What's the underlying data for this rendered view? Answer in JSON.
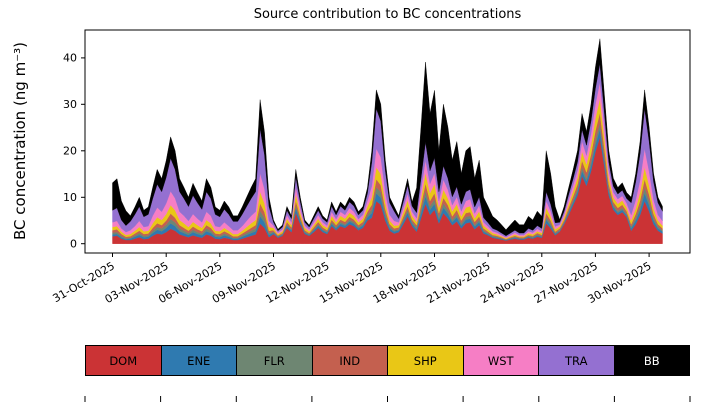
{
  "chart_data": {
    "type": "area",
    "stacked": true,
    "title": "Source contribution to BC concentrations",
    "xlabel": "",
    "ylabel": "BC concentration (ng m⁻³)",
    "ylim": [
      -2,
      46
    ],
    "yticks": [
      0,
      10,
      20,
      30,
      40
    ],
    "grid": false,
    "legend_position": "bottom",
    "x_tick_indices": [
      0,
      12,
      24,
      36,
      48,
      60,
      72,
      84,
      96,
      108,
      120
    ],
    "x_tick_labels": [
      "31-Oct-2025",
      "03-Nov-2025",
      "06-Nov-2025",
      "09-Nov-2025",
      "12-Nov-2025",
      "15-Nov-2025",
      "18-Nov-2025",
      "21-Nov-2025",
      "24-Nov-2025",
      "27-Nov-2025",
      "30-Nov-2025"
    ],
    "points_per_day": 4,
    "series": [
      {
        "name": "DOM",
        "color": "#cb3335",
        "label_color": "#000000",
        "values": [
          1.6,
          1.7,
          1.1,
          0.8,
          0.8,
          1.1,
          1.4,
          1.0,
          1.1,
          1.7,
          2.2,
          2.0,
          2.5,
          3.2,
          2.8,
          2.0,
          1.7,
          1.4,
          1.8,
          1.5,
          1.3,
          2.0,
          1.7,
          1.1,
          1.0,
          1.3,
          1.1,
          0.8,
          0.8,
          1.1,
          1.4,
          1.7,
          2.0,
          4.3,
          3.4,
          1.4,
          2.1,
          1.3,
          1.7,
          3.4,
          2.5,
          6.7,
          4.2,
          2.1,
          1.7,
          2.5,
          3.4,
          2.5,
          2.1,
          3.8,
          2.9,
          3.8,
          3.4,
          4.2,
          3.8,
          2.9,
          3.4,
          5.0,
          5.6,
          9.2,
          8.4,
          5.0,
          2.8,
          2.2,
          2.5,
          4.2,
          5.9,
          3.8,
          2.6,
          5.5,
          8.6,
          6.2,
          7.3,
          4.4,
          6.6,
          5.5,
          4.0,
          4.8,
          3.3,
          4.4,
          4.6,
          3.1,
          4.0,
          2.2,
          1.8,
          1.3,
          1.1,
          0.9,
          0.7,
          0.9,
          1.1,
          0.9,
          0.9,
          1.3,
          1.1,
          1.5,
          1.3,
          4.4,
          3.3,
          1.8,
          2.6,
          4.2,
          6.2,
          8.3,
          10.4,
          14.6,
          12.5,
          15.6,
          19.8,
          22.9,
          16.6,
          10.4,
          7.3,
          6.2,
          6.8,
          5.7,
          2.8,
          4.2,
          6.2,
          9.2,
          7.0,
          4.2,
          2.8,
          2.2
        ]
      },
      {
        "name": "ENE",
        "color": "#2f7ab0",
        "label_color": "#000000",
        "values": [
          0.4,
          0.4,
          0.3,
          0.2,
          0.3,
          0.4,
          0.5,
          0.4,
          0.4,
          0.6,
          0.8,
          0.7,
          0.9,
          1.2,
          1.0,
          0.7,
          0.6,
          0.5,
          0.7,
          0.6,
          0.5,
          0.7,
          0.6,
          0.4,
          0.4,
          0.5,
          0.4,
          0.3,
          0.3,
          0.4,
          0.5,
          0.6,
          0.7,
          1.6,
          1.2,
          0.5,
          0.3,
          0.2,
          0.2,
          0.5,
          0.4,
          1.0,
          0.6,
          0.3,
          0.2,
          0.4,
          0.5,
          0.4,
          0.3,
          0.5,
          0.4,
          0.5,
          0.5,
          0.6,
          0.5,
          0.4,
          0.5,
          0.7,
          1.0,
          1.7,
          1.5,
          0.9,
          0.5,
          0.4,
          0.4,
          0.6,
          0.8,
          0.5,
          0.5,
          1.0,
          1.6,
          1.1,
          1.3,
          0.8,
          1.2,
          1.0,
          0.7,
          0.9,
          0.6,
          0.8,
          0.8,
          0.6,
          0.7,
          0.4,
          0.3,
          0.2,
          0.2,
          0.2,
          0.1,
          0.2,
          0.2,
          0.2,
          0.2,
          0.2,
          0.2,
          0.3,
          0.2,
          0.8,
          0.6,
          0.3,
          0.2,
          0.3,
          0.5,
          0.6,
          0.8,
          1.1,
          1.0,
          1.2,
          1.5,
          1.8,
          1.3,
          0.8,
          0.6,
          0.5,
          0.5,
          0.4,
          0.5,
          0.8,
          1.1,
          1.7,
          1.3,
          0.8,
          0.5,
          0.4
        ]
      },
      {
        "name": "FLR",
        "color": "#6e8672",
        "label_color": "#000000",
        "values": [
          0.4,
          0.4,
          0.3,
          0.2,
          0.2,
          0.3,
          0.4,
          0.3,
          0.3,
          0.5,
          0.6,
          0.6,
          0.7,
          0.9,
          0.8,
          0.6,
          0.5,
          0.4,
          0.5,
          0.4,
          0.4,
          0.6,
          0.5,
          0.3,
          0.3,
          0.4,
          0.3,
          0.2,
          0.2,
          0.3,
          0.4,
          0.5,
          0.6,
          1.2,
          1.0,
          0.4,
          0.2,
          0.1,
          0.2,
          0.3,
          0.2,
          0.6,
          0.4,
          0.2,
          0.2,
          0.2,
          0.3,
          0.2,
          0.2,
          0.4,
          0.3,
          0.4,
          0.3,
          0.4,
          0.4,
          0.3,
          0.3,
          0.5,
          0.8,
          1.3,
          1.2,
          0.7,
          0.4,
          0.3,
          0.2,
          0.4,
          0.6,
          0.4,
          0.4,
          0.8,
          1.2,
          0.8,
          1.0,
          0.6,
          0.9,
          0.8,
          0.5,
          0.7,
          0.5,
          0.6,
          0.6,
          0.4,
          0.5,
          0.3,
          0.2,
          0.2,
          0.2,
          0.1,
          0.1,
          0.1,
          0.2,
          0.1,
          0.1,
          0.2,
          0.2,
          0.2,
          0.2,
          0.6,
          0.5,
          0.2,
          0.2,
          0.2,
          0.4,
          0.5,
          0.6,
          0.8,
          0.7,
          0.9,
          1.1,
          1.3,
          1.0,
          0.6,
          0.4,
          0.4,
          0.4,
          0.3,
          0.4,
          0.6,
          0.9,
          1.3,
          1.0,
          0.6,
          0.4,
          0.3
        ]
      },
      {
        "name": "IND",
        "color": "#c4604f",
        "label_color": "#000000",
        "values": [
          0.5,
          0.6,
          0.4,
          0.3,
          0.3,
          0.4,
          0.5,
          0.4,
          0.4,
          0.6,
          0.8,
          0.7,
          0.9,
          1.2,
          1.0,
          0.7,
          0.6,
          0.5,
          0.7,
          0.6,
          0.5,
          0.7,
          0.6,
          0.4,
          0.4,
          0.5,
          0.4,
          0.3,
          0.3,
          0.4,
          0.5,
          0.6,
          0.7,
          1.6,
          1.2,
          0.5,
          0.3,
          0.2,
          0.2,
          0.5,
          0.4,
          1.0,
          0.6,
          0.3,
          0.2,
          0.4,
          0.5,
          0.4,
          0.3,
          0.5,
          0.4,
          0.5,
          0.5,
          0.6,
          0.5,
          0.4,
          0.5,
          0.7,
          1.0,
          1.7,
          1.5,
          0.9,
          0.5,
          0.4,
          0.4,
          0.6,
          0.8,
          0.5,
          0.5,
          1.0,
          1.6,
          1.1,
          1.3,
          0.8,
          1.2,
          1.0,
          0.7,
          0.9,
          0.6,
          0.8,
          0.8,
          0.6,
          0.7,
          0.4,
          0.3,
          0.2,
          0.2,
          0.2,
          0.1,
          0.2,
          0.2,
          0.2,
          0.2,
          0.2,
          0.2,
          0.3,
          0.2,
          0.8,
          0.6,
          0.3,
          0.3,
          0.4,
          0.6,
          0.8,
          1.0,
          1.4,
          1.2,
          1.5,
          1.9,
          2.2,
          1.6,
          1.0,
          0.7,
          0.6,
          0.7,
          0.6,
          0.5,
          0.8,
          1.1,
          1.7,
          1.3,
          0.8,
          0.5,
          0.4
        ]
      },
      {
        "name": "SHP",
        "color": "#e9c716",
        "label_color": "#000000",
        "values": [
          0.7,
          0.7,
          0.5,
          0.4,
          0.5,
          0.6,
          0.8,
          0.6,
          0.6,
          1.0,
          1.3,
          1.1,
          1.4,
          1.8,
          1.6,
          1.1,
          1.0,
          0.8,
          1.0,
          0.9,
          0.7,
          1.1,
          1.0,
          0.6,
          0.6,
          0.7,
          0.6,
          0.5,
          0.5,
          0.6,
          0.8,
          1.0,
          1.1,
          2.5,
          1.9,
          0.8,
          0.5,
          0.3,
          0.4,
          0.7,
          0.5,
          1.4,
          0.9,
          0.5,
          0.4,
          0.5,
          0.7,
          0.5,
          0.5,
          0.8,
          0.6,
          0.8,
          0.7,
          0.9,
          0.8,
          0.6,
          0.7,
          1.1,
          1.6,
          2.6,
          2.4,
          1.4,
          0.8,
          0.6,
          0.5,
          0.9,
          1.3,
          0.8,
          0.7,
          1.5,
          2.3,
          1.7,
          2.0,
          1.2,
          1.8,
          1.5,
          1.1,
          1.3,
          0.9,
          1.2,
          1.3,
          0.8,
          1.1,
          0.6,
          0.5,
          0.4,
          0.3,
          0.2,
          0.2,
          0.2,
          0.3,
          0.2,
          0.2,
          0.4,
          0.3,
          0.4,
          0.4,
          1.2,
          0.9,
          0.5,
          0.4,
          0.6,
          0.8,
          1.1,
          1.4,
          2.0,
          1.7,
          2.1,
          2.7,
          3.1,
          2.2,
          1.4,
          1.0,
          0.9,
          0.9,
          0.8,
          0.8,
          1.2,
          1.8,
          2.6,
          2.0,
          1.2,
          0.8,
          0.6
        ]
      },
      {
        "name": "WST",
        "color": "#f67ec5",
        "label_color": "#000000",
        "values": [
          1.0,
          1.1,
          0.7,
          0.6,
          0.8,
          1.0,
          1.3,
          0.9,
          1.0,
          1.6,
          2.1,
          1.8,
          2.3,
          3.0,
          2.6,
          1.8,
          1.6,
          1.3,
          1.7,
          1.4,
          1.2,
          1.8,
          1.6,
          1.0,
          0.9,
          1.2,
          1.0,
          0.8,
          0.8,
          1.0,
          1.3,
          1.6,
          1.8,
          4.0,
          3.1,
          1.3,
          0.5,
          0.3,
          0.4,
          0.8,
          0.6,
          1.6,
          1.0,
          0.5,
          0.4,
          0.6,
          0.8,
          0.6,
          0.5,
          0.9,
          0.7,
          0.9,
          0.8,
          1.0,
          0.9,
          0.7,
          0.8,
          1.2,
          2.4,
          4.0,
          3.6,
          2.2,
          1.2,
          1.0,
          0.6,
          1.0,
          1.4,
          0.9,
          0.8,
          1.8,
          2.7,
          2.0,
          2.3,
          1.4,
          2.1,
          1.8,
          1.3,
          1.5,
          1.1,
          1.4,
          1.5,
          1.0,
          1.3,
          0.7,
          0.6,
          0.4,
          0.4,
          0.3,
          0.2,
          0.3,
          0.4,
          0.3,
          0.3,
          0.4,
          0.4,
          0.5,
          0.4,
          1.4,
          1.1,
          0.6,
          0.4,
          0.6,
          1.0,
          1.3,
          1.6,
          2.2,
          1.9,
          2.4,
          3.0,
          3.5,
          2.6,
          1.6,
          1.1,
          1.0,
          1.0,
          0.9,
          1.2,
          1.8,
          2.6,
          4.0,
          3.0,
          1.8,
          1.2,
          1.0
        ]
      },
      {
        "name": "TRA",
        "color": "#9470d1",
        "label_color": "#000000",
        "values": [
          2.6,
          2.8,
          1.8,
          1.4,
          1.9,
          2.5,
          3.1,
          2.2,
          2.5,
          3.7,
          5.0,
          4.3,
          5.6,
          7.1,
          6.2,
          4.3,
          3.7,
          3.1,
          4.0,
          3.4,
          2.8,
          4.3,
          3.7,
          2.5,
          2.2,
          2.8,
          2.5,
          1.9,
          1.9,
          2.5,
          3.1,
          3.7,
          4.3,
          9.6,
          7.4,
          3.1,
          0.7,
          0.4,
          0.5,
          1.0,
          0.8,
          2.1,
          1.3,
          0.7,
          0.5,
          0.8,
          1.0,
          0.8,
          0.7,
          1.2,
          0.9,
          1.2,
          1.0,
          1.3,
          1.2,
          0.9,
          1.0,
          1.6,
          5.2,
          8.6,
          7.8,
          4.7,
          2.6,
          2.1,
          0.8,
          1.3,
          1.8,
          1.2,
          1.2,
          2.5,
          3.9,
          2.8,
          3.3,
          2.0,
          3.0,
          2.5,
          1.8,
          2.2,
          1.5,
          2.0,
          2.1,
          1.4,
          1.8,
          1.0,
          0.8,
          0.6,
          0.5,
          0.4,
          0.3,
          0.4,
          0.5,
          0.4,
          0.4,
          0.6,
          0.5,
          0.7,
          0.6,
          2.0,
          1.5,
          0.8,
          0.5,
          0.7,
          1.1,
          1.4,
          1.8,
          2.5,
          2.2,
          2.7,
          3.4,
          4.0,
          2.9,
          1.8,
          1.3,
          1.1,
          1.2,
          1.0,
          2.6,
          3.9,
          5.7,
          8.6,
          6.5,
          3.9,
          2.6,
          2.1
        ]
      },
      {
        "name": "BB",
        "color": "#000000",
        "label_color": "#ffffff",
        "values": [
          5.9,
          6.3,
          4.1,
          3.2,
          1.2,
          1.6,
          2.0,
          1.4,
          1.6,
          2.4,
          3.2,
          2.8,
          3.6,
          4.6,
          4.0,
          2.8,
          2.4,
          2.0,
          2.6,
          2.2,
          1.8,
          2.8,
          2.4,
          1.6,
          1.4,
          1.8,
          1.6,
          1.2,
          1.2,
          1.6,
          2.0,
          2.4,
          2.8,
          6.2,
          4.8,
          2.0,
          0.5,
          0.3,
          0.4,
          0.8,
          0.6,
          1.6,
          1.0,
          0.5,
          0.4,
          0.6,
          0.8,
          0.6,
          0.5,
          0.9,
          0.7,
          0.9,
          0.8,
          1.0,
          0.9,
          0.7,
          0.8,
          1.2,
          2.4,
          4.0,
          3.6,
          2.2,
          1.2,
          1.0,
          0.6,
          1.0,
          1.4,
          0.9,
          5.3,
          11.0,
          17.2,
          12.3,
          14.5,
          8.8,
          13.2,
          11.0,
          7.9,
          9.7,
          6.6,
          8.8,
          9.2,
          6.2,
          7.9,
          4.4,
          3.5,
          2.6,
          2.2,
          1.8,
          1.3,
          1.8,
          2.2,
          1.8,
          1.8,
          2.6,
          2.2,
          3.1,
          2.6,
          8.8,
          6.6,
          3.5,
          0.6,
          1.0,
          1.4,
          1.9,
          2.4,
          3.4,
          2.9,
          3.6,
          4.6,
          5.3,
          3.8,
          2.4,
          1.7,
          1.4,
          1.6,
          1.3,
          1.2,
          1.8,
          2.6,
          4.0,
          3.0,
          1.8,
          1.2,
          1.0
        ]
      }
    ],
    "legend_labels": [
      "DOM",
      "ENE",
      "FLR",
      "IND",
      "SHP",
      "WST",
      "TRA",
      "BB"
    ]
  }
}
